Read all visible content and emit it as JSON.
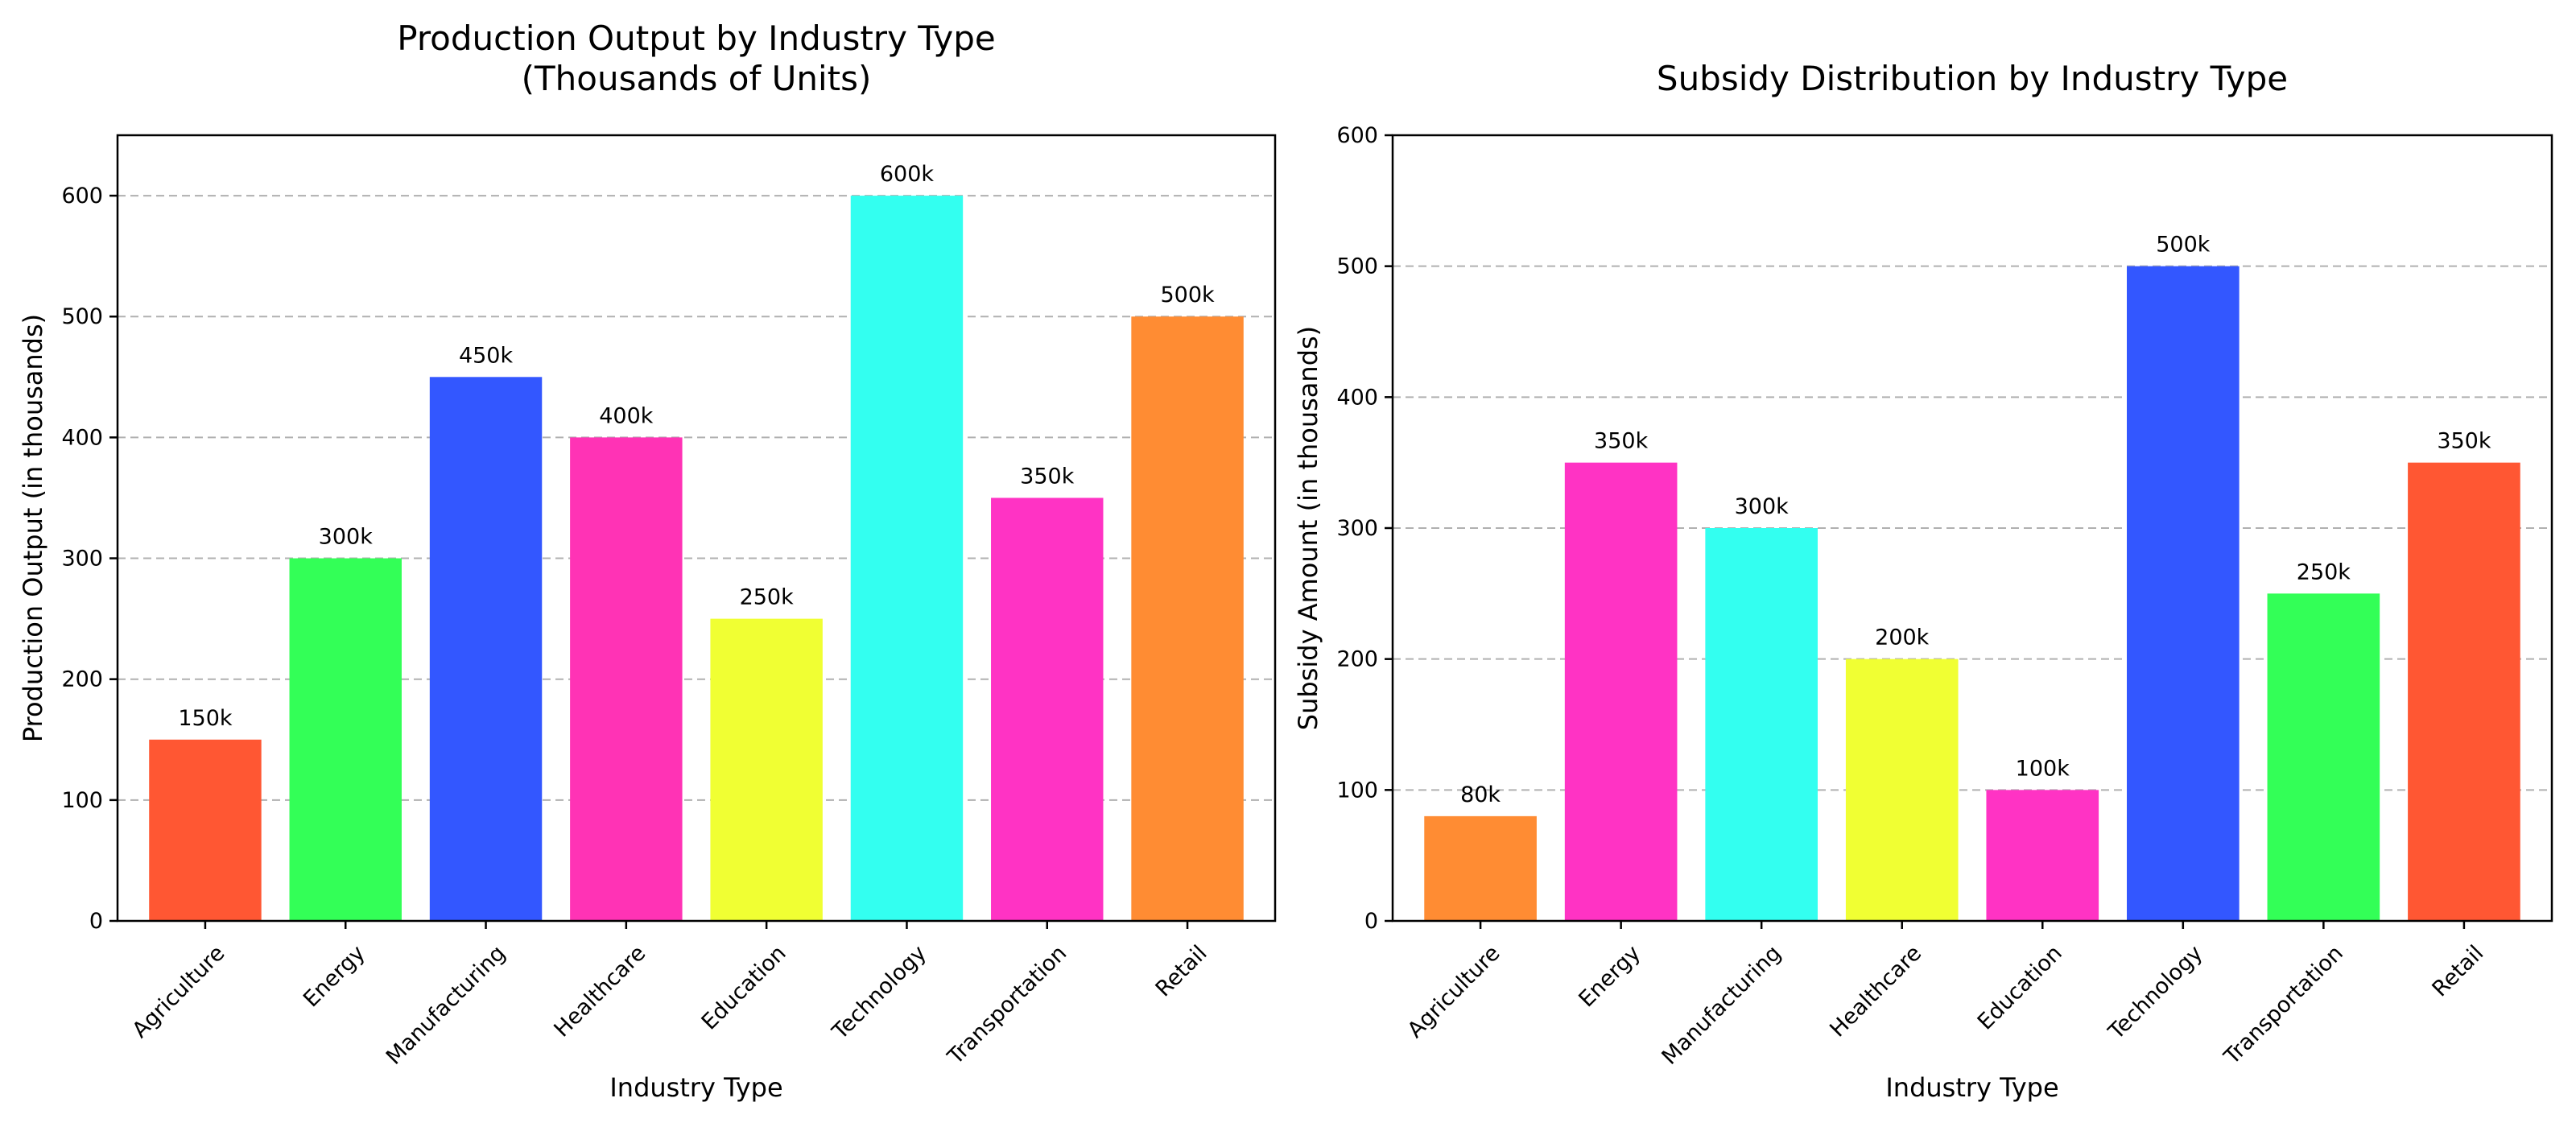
{
  "chart_data": [
    {
      "type": "bar",
      "title": [
        "Production Output by Industry Type",
        "(Thousands of Units)"
      ],
      "xlabel": "Industry Type",
      "ylabel": "Production Output (in thousands)",
      "categories": [
        "Agriculture",
        "Energy",
        "Manufacturing",
        "Healthcare",
        "Education",
        "Technology",
        "Transportation",
        "Retail"
      ],
      "values": [
        150,
        300,
        450,
        400,
        250,
        600,
        350,
        500
      ],
      "data_labels": [
        "150k",
        "300k",
        "450k",
        "400k",
        "250k",
        "600k",
        "350k",
        "500k"
      ],
      "colors": [
        "#ff5733",
        "#33ff57",
        "#3357ff",
        "#ff33b5",
        "#f0ff33",
        "#33fff0",
        "#ff33c4",
        "#ff8c33"
      ],
      "ylim": [
        0,
        650
      ],
      "yticks": [
        0,
        100,
        200,
        300,
        400,
        500,
        600
      ],
      "grid": "y-dashed"
    },
    {
      "type": "bar",
      "title": [
        "Subsidy Distribution by Industry Type"
      ],
      "xlabel": "Industry Type",
      "ylabel": "Subsidy Amount (in thousands)",
      "categories": [
        "Agriculture",
        "Energy",
        "Manufacturing",
        "Healthcare",
        "Education",
        "Technology",
        "Transportation",
        "Retail"
      ],
      "values": [
        80,
        350,
        300,
        200,
        100,
        500,
        250,
        350
      ],
      "data_labels": [
        "80k",
        "350k",
        "300k",
        "200k",
        "100k",
        "500k",
        "250k",
        "350k"
      ],
      "colors": [
        "#ff8c33",
        "#ff33c4",
        "#33fff0",
        "#f0ff33",
        "#ff33c4",
        "#3357ff",
        "#33ff57",
        "#ff5733"
      ],
      "ylim": [
        0,
        600
      ],
      "yticks": [
        0,
        100,
        200,
        300,
        400,
        500,
        600
      ],
      "grid": "y-dashed"
    }
  ]
}
